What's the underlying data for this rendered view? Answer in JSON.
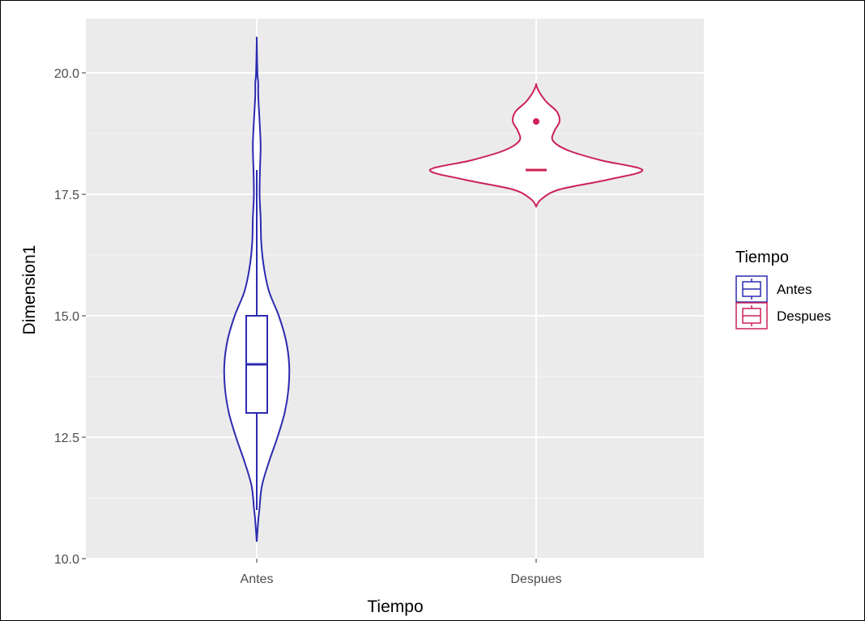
{
  "chart_data": {
    "type": "violin",
    "title": "",
    "xlabel": "Tiempo",
    "ylabel": "Dimension1",
    "ylim": [
      9.8,
      21.0
    ],
    "yticks": [
      10.0,
      12.5,
      15.0,
      17.5,
      20.0
    ],
    "ytick_labels": [
      "10.0",
      "12.5",
      "15.0",
      "17.5",
      "20.0"
    ],
    "categories": [
      "Antes",
      "Despues"
    ],
    "legend": {
      "title": "Tiempo",
      "position": "right",
      "entries": [
        {
          "label": "Antes",
          "color": "#2b2bb0"
        },
        {
          "label": "Despues",
          "color": "#cc2255"
        }
      ]
    },
    "grid": true,
    "panel_background": "#ebebeb",
    "series": [
      {
        "name": "Antes",
        "color": "#2b2bb0",
        "box": {
          "q1": 13.0,
          "median": 14.0,
          "q3": 15.0,
          "whisker_low": 11.0,
          "whisker_high": 18.0
        },
        "outliers": [],
        "density": [
          [
            10.35,
            0.0
          ],
          [
            10.8,
            0.012
          ],
          [
            11.0,
            0.02
          ],
          [
            11.5,
            0.04
          ],
          [
            12.0,
            0.095
          ],
          [
            12.5,
            0.16
          ],
          [
            13.0,
            0.215
          ],
          [
            13.5,
            0.245
          ],
          [
            14.0,
            0.25
          ],
          [
            14.5,
            0.225
          ],
          [
            15.0,
            0.17
          ],
          [
            15.5,
            0.095
          ],
          [
            16.0,
            0.055
          ],
          [
            16.5,
            0.035
          ],
          [
            17.0,
            0.03
          ],
          [
            17.5,
            0.022
          ],
          [
            18.0,
            0.025
          ],
          [
            18.5,
            0.03
          ],
          [
            19.0,
            0.022
          ],
          [
            19.5,
            0.012
          ],
          [
            19.8,
            0.011
          ],
          [
            20.0,
            0.005
          ],
          [
            20.65,
            0.0
          ]
        ]
      },
      {
        "name": "Despues",
        "color": "#cc2255",
        "box": {
          "q1": 18.0,
          "median": 18.0,
          "q3": 18.0,
          "whisker_low": 18.0,
          "whisker_high": 18.0
        },
        "outliers": [
          19.0
        ],
        "density": [
          [
            17.25,
            0.0
          ],
          [
            17.4,
            0.04
          ],
          [
            17.6,
            0.18
          ],
          [
            17.8,
            0.55
          ],
          [
            18.0,
            0.82
          ],
          [
            18.2,
            0.5
          ],
          [
            18.4,
            0.25
          ],
          [
            18.6,
            0.13
          ],
          [
            18.8,
            0.14
          ],
          [
            19.0,
            0.18
          ],
          [
            19.2,
            0.16
          ],
          [
            19.4,
            0.08
          ],
          [
            19.6,
            0.025
          ],
          [
            19.75,
            0.0
          ]
        ]
      }
    ]
  }
}
